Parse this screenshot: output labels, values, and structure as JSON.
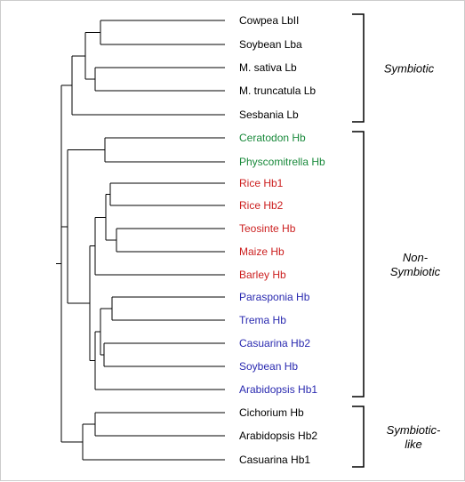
{
  "colors": {
    "symbiotic": "#000000",
    "moss": "#1a8a3c",
    "cereal": "#cc1f1f",
    "nonlegume": "#2a2ab0",
    "line": "#000000"
  },
  "tree": {
    "leaves": [
      {
        "label": "Cowpea LbII",
        "color_key": "symbiotic"
      },
      {
        "label": "Soybean Lba",
        "color_key": "symbiotic"
      },
      {
        "label": "M. sativa Lb",
        "color_key": "symbiotic"
      },
      {
        "label": "M. truncatula Lb",
        "color_key": "symbiotic"
      },
      {
        "label": "Sesbania Lb",
        "color_key": "symbiotic"
      },
      {
        "label": "Ceratodon Hb",
        "color_key": "moss"
      },
      {
        "label": "Physcomitrella Hb",
        "color_key": "moss"
      },
      {
        "label": "Rice Hb1",
        "color_key": "cereal"
      },
      {
        "label": "Rice Hb2",
        "color_key": "cereal"
      },
      {
        "label": "Teosinte Hb",
        "color_key": "cereal"
      },
      {
        "label": "Maize Hb",
        "color_key": "cereal"
      },
      {
        "label": "Barley Hb",
        "color_key": "cereal"
      },
      {
        "label": "Parasponia Hb",
        "color_key": "nonlegume"
      },
      {
        "label": "Trema Hb",
        "color_key": "nonlegume"
      },
      {
        "label": "Casuarina Hb2",
        "color_key": "nonlegume"
      },
      {
        "label": "Soybean Hb",
        "color_key": "nonlegume"
      },
      {
        "label": "Arabidopsis Hb1",
        "color_key": "nonlegume"
      },
      {
        "label": "Cichorium Hb",
        "color_key": "symbiotic"
      },
      {
        "label": "Arabidopsis Hb2",
        "color_key": "symbiotic"
      },
      {
        "label": "Casuarina Hb1",
        "color_key": "symbiotic"
      }
    ],
    "groups": [
      {
        "lines": [
          "Symbiotic"
        ],
        "from": 0,
        "to": 4
      },
      {
        "lines": [
          "Non-",
          "Symbiotic"
        ],
        "from": 5,
        "to": 16
      },
      {
        "lines": [
          "Symbiotic-",
          "like"
        ],
        "from": 17,
        "to": 19
      }
    ]
  }
}
